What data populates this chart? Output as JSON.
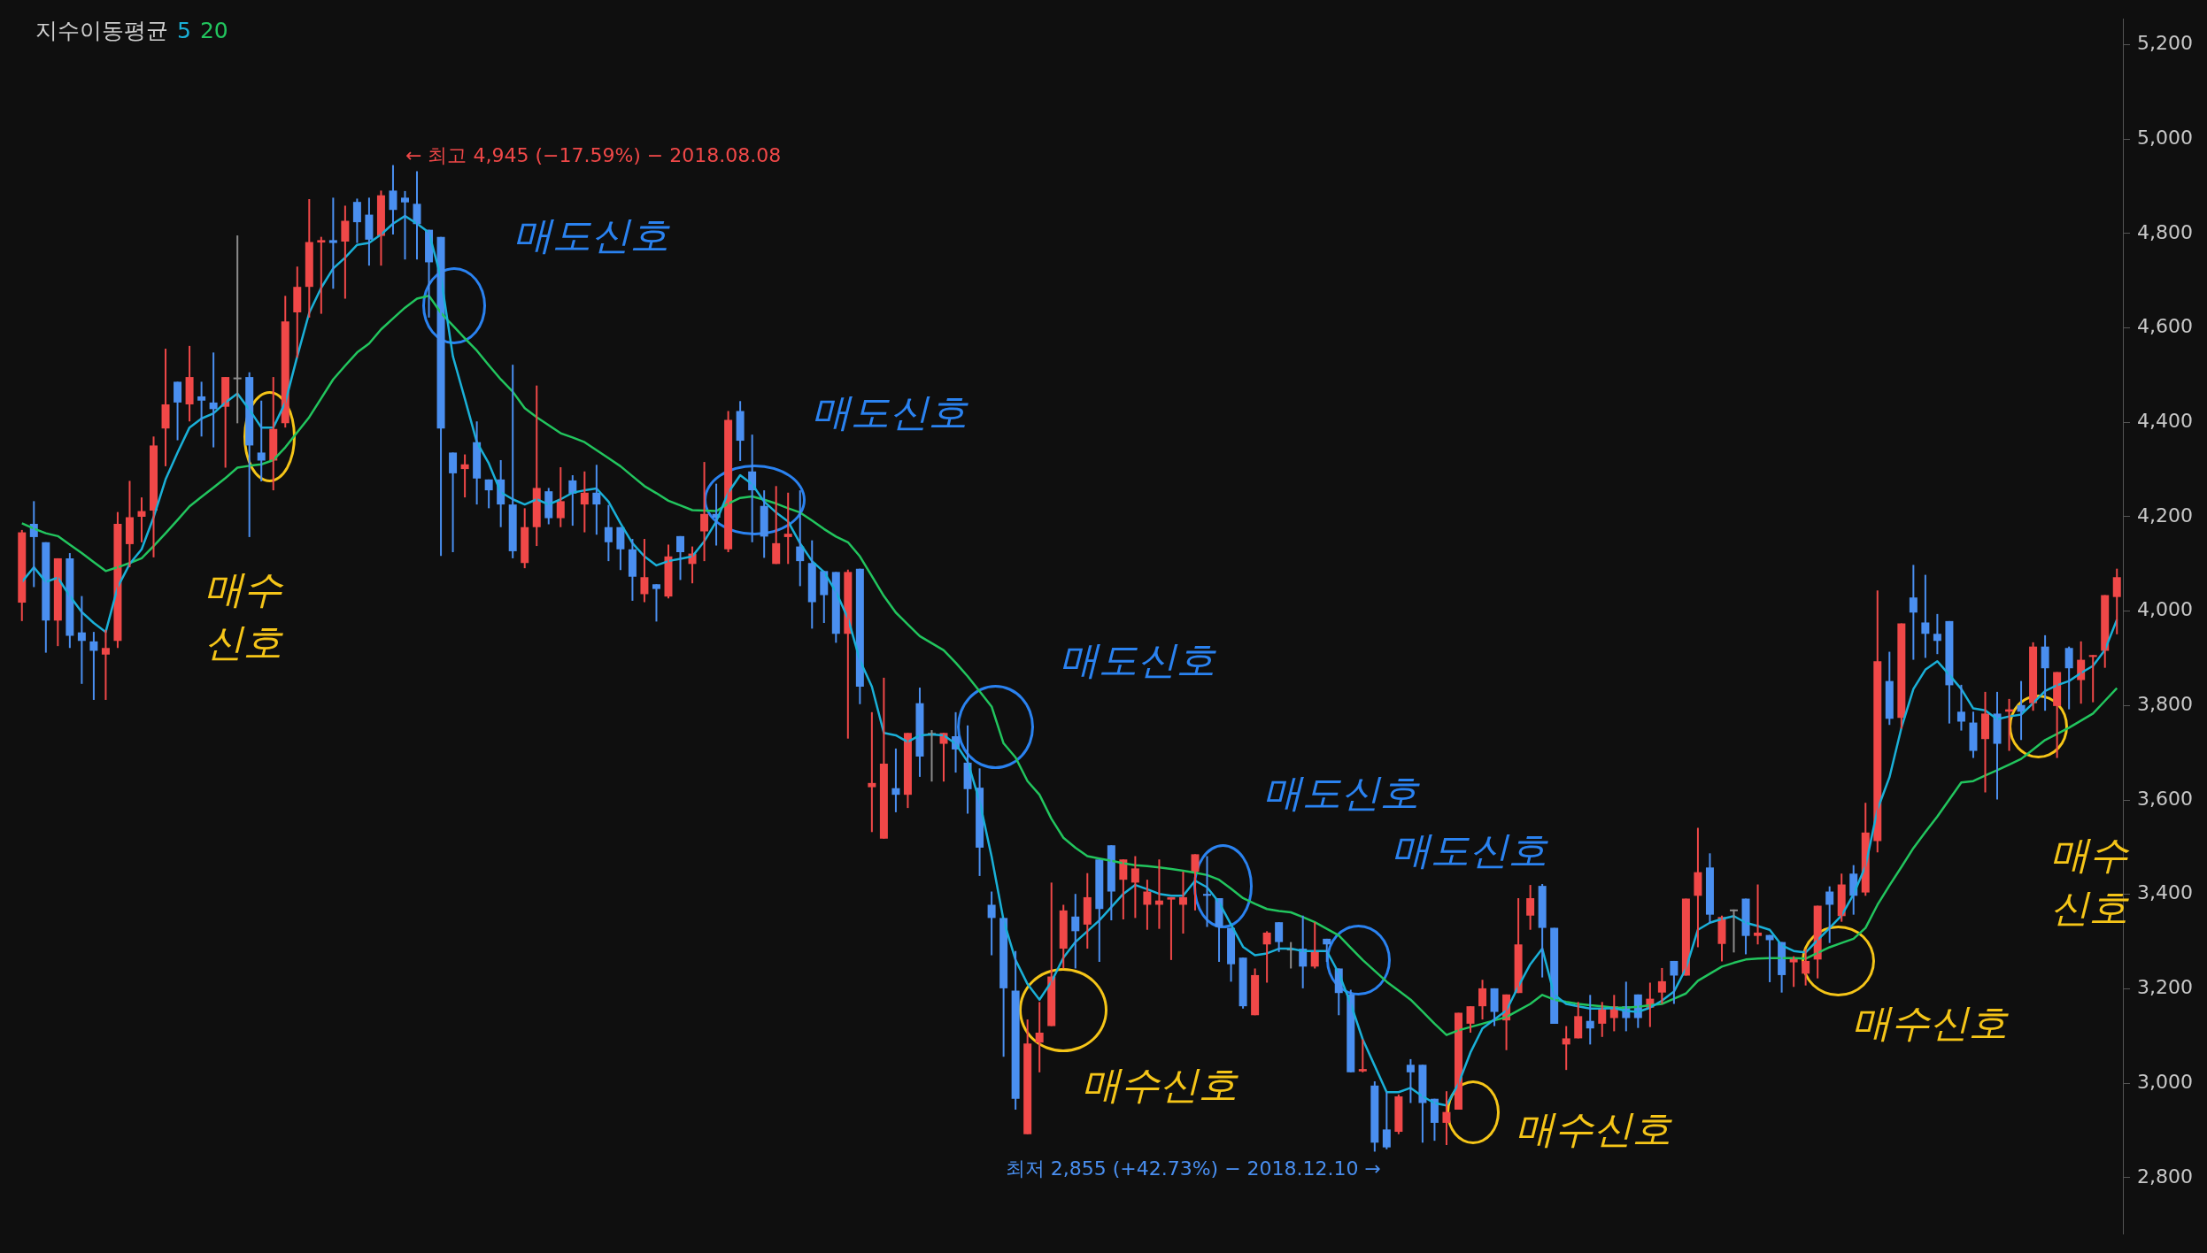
{
  "chart_data": {
    "type": "candlestick",
    "legend_title": "지수이동평균",
    "legend": "top left",
    "categories": [
      null,
      null,
      null,
      null,
      null,
      null,
      null,
      null,
      null,
      null,
      null,
      null,
      null,
      null,
      null,
      null,
      null,
      null,
      null,
      null,
      null,
      null,
      null,
      null,
      null,
      null,
      null,
      null,
      null,
      null,
      null,
      null,
      null,
      null,
      null,
      null,
      null,
      null,
      null,
      null,
      null,
      null,
      null,
      null,
      null,
      null,
      null,
      null,
      null,
      null,
      null,
      null,
      null,
      null,
      null,
      null,
      null,
      null,
      null,
      null,
      null,
      null,
      null,
      null,
      null,
      null,
      null,
      null,
      null,
      null,
      null,
      null,
      null,
      null,
      null,
      null,
      null,
      null,
      null,
      null,
      null,
      null,
      null,
      null,
      null,
      null,
      null,
      null,
      null,
      null,
      null,
      null,
      null,
      null,
      null,
      null,
      null,
      null,
      null,
      null,
      null,
      null,
      null,
      null,
      null,
      null,
      null,
      null,
      null,
      null,
      null,
      null,
      null,
      null,
      null,
      null,
      null,
      null,
      null,
      null,
      null,
      null,
      null,
      null,
      null,
      null,
      null,
      null,
      null,
      null,
      null,
      null,
      null,
      null,
      null,
      null,
      null,
      null,
      null,
      null,
      null,
      null,
      null,
      null,
      null,
      null,
      null,
      null,
      null,
      null,
      null,
      null,
      null,
      null,
      null,
      null,
      null,
      null,
      null,
      null,
      null,
      null,
      null,
      null,
      null,
      null,
      null,
      null,
      null,
      null,
      null,
      null,
      null,
      null,
      null,
      null
    ],
    "ohlc": [
      [
        4018,
        4172,
        3979,
        4167
      ],
      [
        4185,
        4233,
        4051,
        4157
      ],
      [
        4146,
        4146,
        3912,
        3980
      ],
      [
        3980,
        4112,
        3926,
        4112
      ],
      [
        4112,
        4123,
        3922,
        3948
      ],
      [
        3955,
        4032,
        3846,
        3937
      ],
      [
        3936,
        3956,
        3812,
        3916
      ],
      [
        3908,
        3960,
        3812,
        3922
      ],
      [
        3937,
        4210,
        3922,
        4185
      ],
      [
        4142,
        4276,
        4093,
        4199
      ],
      [
        4200,
        4241,
        4146,
        4212
      ],
      [
        4213,
        4370,
        4114,
        4351
      ],
      [
        4387,
        4556,
        4307,
        4438
      ],
      [
        4486,
        4486,
        4362,
        4442
      ],
      [
        4438,
        4562,
        4402,
        4496
      ],
      [
        4455,
        4486,
        4370,
        4446
      ],
      [
        4442,
        4548,
        4347,
        4428
      ],
      [
        4433,
        4496,
        4304,
        4496
      ],
      [
        4495,
        4796,
        4398,
        4495
      ],
      [
        4496,
        4506,
        4157,
        4351
      ],
      [
        4336,
        4446,
        4275,
        4319
      ],
      [
        4319,
        4496,
        4256,
        4386
      ],
      [
        4398,
        4668,
        4389,
        4614
      ],
      [
        4633,
        4730,
        4537,
        4687
      ],
      [
        4687,
        4873,
        4622,
        4782
      ],
      [
        4781,
        4793,
        4630,
        4786
      ],
      [
        4786,
        4876,
        4683,
        4780
      ],
      [
        4783,
        4859,
        4662,
        4827
      ],
      [
        4867,
        4874,
        4780,
        4824
      ],
      [
        4840,
        4876,
        4732,
        4787
      ],
      [
        4795,
        4891,
        4732,
        4881
      ],
      [
        4891,
        4945,
        4798,
        4850
      ],
      [
        4876,
        4890,
        4745,
        4866
      ],
      [
        4863,
        4932,
        4745,
        4820
      ],
      [
        4808,
        4808,
        4622,
        4739
      ],
      [
        4793,
        4793,
        4117,
        4387
      ],
      [
        4336,
        4336,
        4125,
        4292
      ],
      [
        4301,
        4332,
        4241,
        4311
      ],
      [
        4358,
        4402,
        4226,
        4281
      ],
      [
        4279,
        4279,
        4218,
        4256
      ],
      [
        4279,
        4320,
        4178,
        4226
      ],
      [
        4226,
        4522,
        4112,
        4127
      ],
      [
        4102,
        4218,
        4091,
        4178
      ],
      [
        4178,
        4478,
        4138,
        4261
      ],
      [
        4254,
        4261,
        4184,
        4197
      ],
      [
        4197,
        4305,
        4178,
        4233
      ],
      [
        4277,
        4288,
        4181,
        4249
      ],
      [
        4226,
        4296,
        4167,
        4251
      ],
      [
        4251,
        4310,
        4162,
        4226
      ],
      [
        4178,
        4225,
        4106,
        4146
      ],
      [
        4178,
        4178,
        4087,
        4131
      ],
      [
        4131,
        4153,
        4022,
        4073
      ],
      [
        4036,
        4153,
        4019,
        4072
      ],
      [
        4057,
        4057,
        3978,
        4047
      ],
      [
        4031,
        4141,
        4027,
        4116
      ],
      [
        4159,
        4159,
        4066,
        4125
      ],
      [
        4100,
        4137,
        4059,
        4122
      ],
      [
        4169,
        4316,
        4106,
        4206
      ],
      [
        4206,
        4270,
        4139,
        4198
      ],
      [
        4131,
        4424,
        4125,
        4405
      ],
      [
        4424,
        4445,
        4318,
        4361
      ],
      [
        4296,
        4374,
        4146,
        4256
      ],
      [
        4223,
        4256,
        4113,
        4158
      ],
      [
        4100,
        4265,
        4100,
        4144
      ],
      [
        4157,
        4251,
        4100,
        4164
      ],
      [
        4137,
        4256,
        4053,
        4106
      ],
      [
        4102,
        4150,
        3963,
        4019
      ],
      [
        4085,
        4085,
        3975,
        4034
      ],
      [
        4083,
        4083,
        3933,
        3952
      ],
      [
        3952,
        4088,
        3730,
        4083
      ],
      [
        4090,
        4090,
        3803,
        3840
      ],
      [
        3627,
        3786,
        3532,
        3636
      ],
      [
        3518,
        3859,
        3518,
        3677
      ],
      [
        3625,
        3709,
        3574,
        3611
      ],
      [
        3611,
        3742,
        3583,
        3742
      ],
      [
        3805,
        3838,
        3649,
        3692
      ],
      [
        3742,
        3748,
        3639,
        3742
      ],
      [
        3719,
        3742,
        3639,
        3742
      ],
      [
        3735,
        3786,
        3658,
        3707
      ],
      [
        3679,
        3758,
        3571,
        3623
      ],
      [
        3626,
        3667,
        3439,
        3499
      ],
      [
        3378,
        3406,
        3271,
        3350
      ],
      [
        3350,
        3350,
        3056,
        3201
      ],
      [
        3196,
        3280,
        2944,
        2967
      ],
      [
        2892,
        3135,
        2892,
        3084
      ],
      [
        3086,
        3172,
        3023,
        3107
      ],
      [
        3121,
        3425,
        3121,
        3226
      ],
      [
        3285,
        3378,
        3243,
        3366
      ],
      [
        3353,
        3401,
        3243,
        3322
      ],
      [
        3336,
        3445,
        3285,
        3394
      ],
      [
        3474,
        3474,
        3257,
        3369
      ],
      [
        3504,
        3504,
        3345,
        3406
      ],
      [
        3431,
        3474,
        3347,
        3474
      ],
      [
        3425,
        3481,
        3350,
        3455
      ],
      [
        3378,
        3431,
        3325,
        3406
      ],
      [
        3378,
        3474,
        3327,
        3387
      ],
      [
        3389,
        3394,
        3261,
        3394
      ],
      [
        3378,
        3448,
        3317,
        3394
      ],
      [
        3448,
        3485,
        3366,
        3485
      ],
      [
        3401,
        3481,
        3331,
        3397
      ],
      [
        3392,
        3392,
        3257,
        3331
      ],
      [
        3329,
        3329,
        3215,
        3252
      ],
      [
        3266,
        3266,
        3158,
        3163
      ],
      [
        3144,
        3243,
        3144,
        3229
      ],
      [
        3294,
        3322,
        3213,
        3319
      ],
      [
        3341,
        3341,
        3278,
        3299
      ],
      [
        3285,
        3299,
        3243,
        3285
      ],
      [
        3285,
        3355,
        3201,
        3247
      ],
      [
        3247,
        3341,
        3243,
        3280
      ],
      [
        3306,
        3306,
        3257,
        3294
      ],
      [
        3243,
        3243,
        3144,
        3191
      ],
      [
        3188,
        3198,
        3023,
        3023
      ],
      [
        3025,
        3093,
        3023,
        3030
      ],
      [
        2995,
        3004,
        2855,
        2874
      ],
      [
        2902,
        2981,
        2860,
        2864
      ],
      [
        2897,
        2976,
        2892,
        2972
      ],
      [
        3039,
        3051,
        2958,
        3023
      ],
      [
        3039,
        3039,
        2874,
        2958
      ],
      [
        2967,
        2967,
        2878,
        2916
      ],
      [
        2916,
        2983,
        2869,
        2939
      ],
      [
        2944,
        3149,
        2944,
        3149
      ],
      [
        3126,
        3163,
        3107,
        3163
      ],
      [
        3163,
        3219,
        3135,
        3201
      ],
      [
        3201,
        3201,
        3121,
        3151
      ],
      [
        3133,
        3188,
        3070,
        3188
      ],
      [
        3191,
        3392,
        3191,
        3294
      ],
      [
        3355,
        3420,
        3325,
        3392
      ],
      [
        3418,
        3422,
        3224,
        3329
      ],
      [
        3329,
        3329,
        3126,
        3126
      ],
      [
        3082,
        3121,
        3028,
        3095
      ],
      [
        3095,
        3172,
        3095,
        3142
      ],
      [
        3132,
        3187,
        3082,
        3116
      ],
      [
        3126,
        3172,
        3098,
        3157
      ],
      [
        3138,
        3187,
        3110,
        3163
      ],
      [
        3163,
        3215,
        3110,
        3138
      ],
      [
        3188,
        3188,
        3117,
        3138
      ],
      [
        3160,
        3213,
        3119,
        3179
      ],
      [
        3192,
        3244,
        3168,
        3216
      ],
      [
        3259,
        3259,
        3168,
        3228
      ],
      [
        3228,
        3391,
        3228,
        3391
      ],
      [
        3397,
        3541,
        3288,
        3447
      ],
      [
        3457,
        3487,
        3339,
        3357
      ],
      [
        3295,
        3355,
        3258,
        3352
      ],
      [
        3368,
        3368,
        3277,
        3368
      ],
      [
        3391,
        3391,
        3273,
        3312
      ],
      [
        3312,
        3421,
        3294,
        3319
      ],
      [
        3314,
        3314,
        3214,
        3303
      ],
      [
        3299,
        3299,
        3192,
        3229
      ],
      [
        3256,
        3269,
        3204,
        3263
      ],
      [
        3232,
        3284,
        3207,
        3259
      ],
      [
        3262,
        3376,
        3222,
        3376
      ],
      [
        3406,
        3417,
        3297,
        3378
      ],
      [
        3354,
        3444,
        3342,
        3421
      ],
      [
        3444,
        3462,
        3357,
        3397
      ],
      [
        3404,
        3594,
        3397,
        3531
      ],
      [
        3513,
        4044,
        3489,
        3894
      ],
      [
        3852,
        3914,
        3759,
        3772
      ],
      [
        3774,
        3974,
        3751,
        3974
      ],
      [
        4029,
        4098,
        3897,
        3997
      ],
      [
        3976,
        4077,
        3901,
        3952
      ],
      [
        3952,
        3994,
        3909,
        3937
      ],
      [
        3979,
        3979,
        3762,
        3843
      ],
      [
        3787,
        3844,
        3747,
        3766
      ],
      [
        3764,
        3787,
        3689,
        3704
      ],
      [
        3729,
        3829,
        3616,
        3783
      ],
      [
        3783,
        3829,
        3601,
        3719
      ],
      [
        3787,
        3814,
        3704,
        3792
      ],
      [
        3801,
        3852,
        3727,
        3787
      ],
      [
        3805,
        3934,
        3789,
        3925
      ],
      [
        3925,
        3949,
        3789,
        3879
      ],
      [
        3799,
        3871,
        3689,
        3871
      ],
      [
        3922,
        3925,
        3792,
        3879
      ],
      [
        3854,
        3936,
        3804,
        3897
      ],
      [
        3903,
        3907,
        3807,
        3907
      ],
      [
        3916,
        4034,
        3880,
        4034
      ],
      [
        4030,
        4090,
        3951,
        4072
      ]
    ],
    "colors": [
      "#f04848",
      "#4a8ff0",
      "#4a8ff0",
      "#f04848",
      "#4a8ff0",
      "#4a8ff0",
      "#4a8ff0",
      "#f04848",
      "#f04848",
      "#f04848",
      "#f04848",
      "#f04848",
      "#f04848",
      "#4a8ff0",
      "#f04848",
      "#4a8ff0",
      "#4a8ff0",
      "#f04848",
      "#8c8c8c",
      "#4a8ff0",
      "#4a8ff0",
      "#f04848",
      "#f04848",
      "#f04848",
      "#f04848",
      "#f04848",
      "#4a8ff0",
      "#f04848",
      "#4a8ff0",
      "#4a8ff0",
      "#f04848",
      "#4a8ff0",
      "#4a8ff0",
      "#4a8ff0",
      "#4a8ff0",
      "#4a8ff0",
      "#4a8ff0",
      "#f04848",
      "#4a8ff0",
      "#4a8ff0",
      "#4a8ff0",
      "#4a8ff0",
      "#f04848",
      "#f04848",
      "#4a8ff0",
      "#f04848",
      "#4a8ff0",
      "#f04848",
      "#4a8ff0",
      "#4a8ff0",
      "#4a8ff0",
      "#4a8ff0",
      "#f04848",
      "#4a8ff0",
      "#f04848",
      "#4a8ff0",
      "#f04848",
      "#f04848",
      "#4a8ff0",
      "#f04848",
      "#4a8ff0",
      "#4a8ff0",
      "#4a8ff0",
      "#f04848",
      "#f04848",
      "#4a8ff0",
      "#4a8ff0",
      "#4a8ff0",
      "#4a8ff0",
      "#f04848",
      "#4a8ff0",
      "#f04848",
      "#f04848",
      "#4a8ff0",
      "#f04848",
      "#4a8ff0",
      "#8c8c8c",
      "#f04848",
      "#4a8ff0",
      "#4a8ff0",
      "#4a8ff0",
      "#4a8ff0",
      "#4a8ff0",
      "#4a8ff0",
      "#f04848",
      "#f04848",
      "#f04848",
      "#f04848",
      "#4a8ff0",
      "#f04848",
      "#4a8ff0",
      "#4a8ff0",
      "#f04848",
      "#f04848",
      "#f04848",
      "#f04848",
      "#f04848",
      "#f04848",
      "#f04848",
      "#4a8ff0",
      "#4a8ff0",
      "#4a8ff0",
      "#4a8ff0",
      "#f04848",
      "#f04848",
      "#4a8ff0",
      "#8c8c8c",
      "#4a8ff0",
      "#f04848",
      "#4a8ff0",
      "#4a8ff0",
      "#4a8ff0",
      "#f04848",
      "#4a8ff0",
      "#4a8ff0",
      "#f04848",
      "#4a8ff0",
      "#4a8ff0",
      "#4a8ff0",
      "#f04848",
      "#f04848",
      "#f04848",
      "#f04848",
      "#4a8ff0",
      "#f04848",
      "#f04848",
      "#f04848",
      "#4a8ff0",
      "#4a8ff0",
      "#f04848",
      "#f04848",
      "#4a8ff0",
      "#f04848",
      "#f04848",
      "#4a8ff0",
      "#4a8ff0",
      "#f04848",
      "#f04848",
      "#4a8ff0",
      "#f04848",
      "#f04848",
      "#4a8ff0",
      "#f04848",
      "#8c8c8c",
      "#4a8ff0",
      "#f04848",
      "#4a8ff0",
      "#4a8ff0",
      "#f04848",
      "#f04848",
      "#f04848",
      "#4a8ff0",
      "#f04848",
      "#4a8ff0",
      "#f04848",
      "#f04848",
      "#4a8ff0",
      "#f04848",
      "#4a8ff0",
      "#4a8ff0",
      "#4a8ff0",
      "#4a8ff0",
      "#4a8ff0",
      "#4a8ff0",
      "#f04848",
      "#4a8ff0",
      "#f04848",
      "#4a8ff0",
      "#f04848",
      "#4a8ff0",
      "#f04848",
      "#4a8ff0",
      "#f04848",
      "#f04848",
      "#f04848",
      "#f04848"
    ],
    "series": [
      {
        "name": "5",
        "color": "#1ab0d8",
        "type": "line",
        "values": [
          4062,
          4093,
          4062,
          4071,
          4032,
          3998,
          3975,
          3956,
          4051,
          4100,
          4131,
          4199,
          4279,
          4336,
          4389,
          4408,
          4419,
          4442,
          4461,
          4427,
          4389,
          4389,
          4442,
          4540,
          4632,
          4685,
          4726,
          4749,
          4776,
          4780,
          4798,
          4821,
          4837,
          4821,
          4802,
          4707,
          4540,
          4450,
          4358,
          4313,
          4252,
          4237,
          4226,
          4237,
          4226,
          4237,
          4251,
          4256,
          4260,
          4232,
          4186,
          4144,
          4116,
          4097,
          4106,
          4111,
          4116,
          4148,
          4190,
          4251,
          4288,
          4269,
          4232,
          4209,
          4190,
          4144,
          4106,
          4083,
          4041,
          3985,
          3896,
          3840,
          3742,
          3737,
          3723,
          3737,
          3739,
          3737,
          3719,
          3681,
          3597,
          3480,
          3345,
          3261,
          3210,
          3177,
          3215,
          3266,
          3299,
          3322,
          3345,
          3373,
          3401,
          3420,
          3411,
          3401,
          3397,
          3397,
          3429,
          3415,
          3383,
          3336,
          3289,
          3271,
          3275,
          3285,
          3285,
          3280,
          3280,
          3280,
          3233,
          3168,
          3093,
          3037,
          2981,
          2981,
          2990,
          2972,
          2958,
          2953,
          2999,
          3065,
          3116,
          3135,
          3154,
          3205,
          3252,
          3285,
          3187,
          3168,
          3163,
          3158,
          3158,
          3159,
          3153,
          3151,
          3160,
          3175,
          3194,
          3243,
          3325,
          3340,
          3348,
          3354,
          3340,
          3333,
          3325,
          3292,
          3280,
          3277,
          3303,
          3329,
          3355,
          3400,
          3460,
          3580,
          3648,
          3753,
          3835,
          3876,
          3894,
          3865,
          3835,
          3794,
          3790,
          3771,
          3777,
          3781,
          3805,
          3831,
          3843,
          3852,
          3869,
          3884,
          3918,
          3982
        ]
      },
      {
        "name": "20",
        "color": "#22c55e",
        "type": "line",
        "values": [
          4186,
          4175,
          4165,
          4159,
          4141,
          4123,
          4104,
          4085,
          4093,
          4102,
          4112,
          4138,
          4165,
          4193,
          4222,
          4242,
          4262,
          4282,
          4304,
          4308,
          4311,
          4320,
          4347,
          4379,
          4411,
          4451,
          4491,
          4520,
          4548,
          4567,
          4597,
          4620,
          4643,
          4662,
          4668,
          4632,
          4605,
          4578,
          4552,
          4521,
          4491,
          4465,
          4430,
          4411,
          4394,
          4377,
          4368,
          4358,
          4341,
          4324,
          4307,
          4286,
          4265,
          4250,
          4234,
          4224,
          4214,
          4213,
          4212,
          4228,
          4240,
          4243,
          4236,
          4228,
          4218,
          4209,
          4192,
          4174,
          4158,
          4146,
          4116,
          4074,
          4032,
          3997,
          3972,
          3947,
          3932,
          3917,
          3891,
          3862,
          3830,
          3798,
          3720,
          3690,
          3640,
          3611,
          3560,
          3520,
          3499,
          3481,
          3476,
          3471,
          3466,
          3462,
          3460,
          3457,
          3454,
          3450,
          3446,
          3441,
          3431,
          3412,
          3392,
          3380,
          3369,
          3365,
          3362,
          3352,
          3341,
          3327,
          3313,
          3287,
          3261,
          3238,
          3215,
          3196,
          3177,
          3152,
          3126,
          3102,
          3112,
          3119,
          3126,
          3133,
          3140,
          3154,
          3168,
          3187,
          3177,
          3172,
          3168,
          3165,
          3163,
          3160,
          3160,
          3162,
          3165,
          3168,
          3179,
          3190,
          3217,
          3232,
          3247,
          3255,
          3262,
          3264,
          3265,
          3265,
          3265,
          3264,
          3276,
          3288,
          3297,
          3306,
          3329,
          3378,
          3419,
          3458,
          3498,
          3532,
          3565,
          3601,
          3637,
          3640,
          3652,
          3663,
          3675,
          3687,
          3707,
          3727,
          3740,
          3753,
          3768,
          3783,
          3810,
          3837
        ]
      }
    ],
    "ylim": [
      2680,
      5255
    ],
    "yticks": [
      {
        "value": 2800,
        "label": "2,800"
      },
      {
        "value": 3000,
        "label": "3,000"
      },
      {
        "value": 3200,
        "label": "3,200"
      },
      {
        "value": 3400,
        "label": "3,400"
      },
      {
        "value": 3600,
        "label": "3,600"
      },
      {
        "value": 3800,
        "label": "3,800"
      },
      {
        "value": 4000,
        "label": "4,000"
      },
      {
        "value": 4200,
        "label": "4,200"
      },
      {
        "value": 4400,
        "label": "4,400"
      },
      {
        "value": 4600,
        "label": "4,600"
      },
      {
        "value": 4800,
        "label": "4,800"
      },
      {
        "value": 5000,
        "label": "5,000"
      },
      {
        "value": 5200,
        "label": "5,200"
      }
    ],
    "annotations": [
      "← 최고 4,945 (−17.59%) − 2018.08.08",
      "최저 2,855 (+42.73%) − 2018.12.10 →",
      "매도신호",
      "매도신호",
      "매도신호",
      "매도신호",
      "매도신호",
      "매수\n신호",
      "매수신호",
      "매수신호",
      "매수신호",
      "매수\n신호"
    ]
  }
}
